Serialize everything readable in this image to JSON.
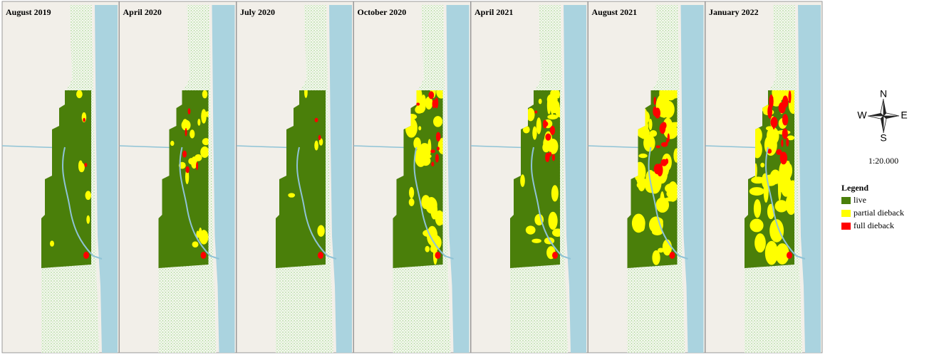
{
  "panels": [
    {
      "title": "August 2019"
    },
    {
      "title": "April 2020"
    },
    {
      "title": "July 2020"
    },
    {
      "title": "October 2020"
    },
    {
      "title": "April 2021"
    },
    {
      "title": "August 2021"
    },
    {
      "title": "January 2022"
    }
  ],
  "compass": {
    "north": "N",
    "south": "S",
    "east": "E",
    "west": "W"
  },
  "scale": "1:20.000",
  "legend": {
    "title": "Legend",
    "items": [
      {
        "label": "live",
        "color": "#4a7f0a"
      },
      {
        "label": "partial dieback",
        "color": "#ffff00"
      },
      {
        "label": "full dieback",
        "color": "#ff0000"
      }
    ]
  }
}
